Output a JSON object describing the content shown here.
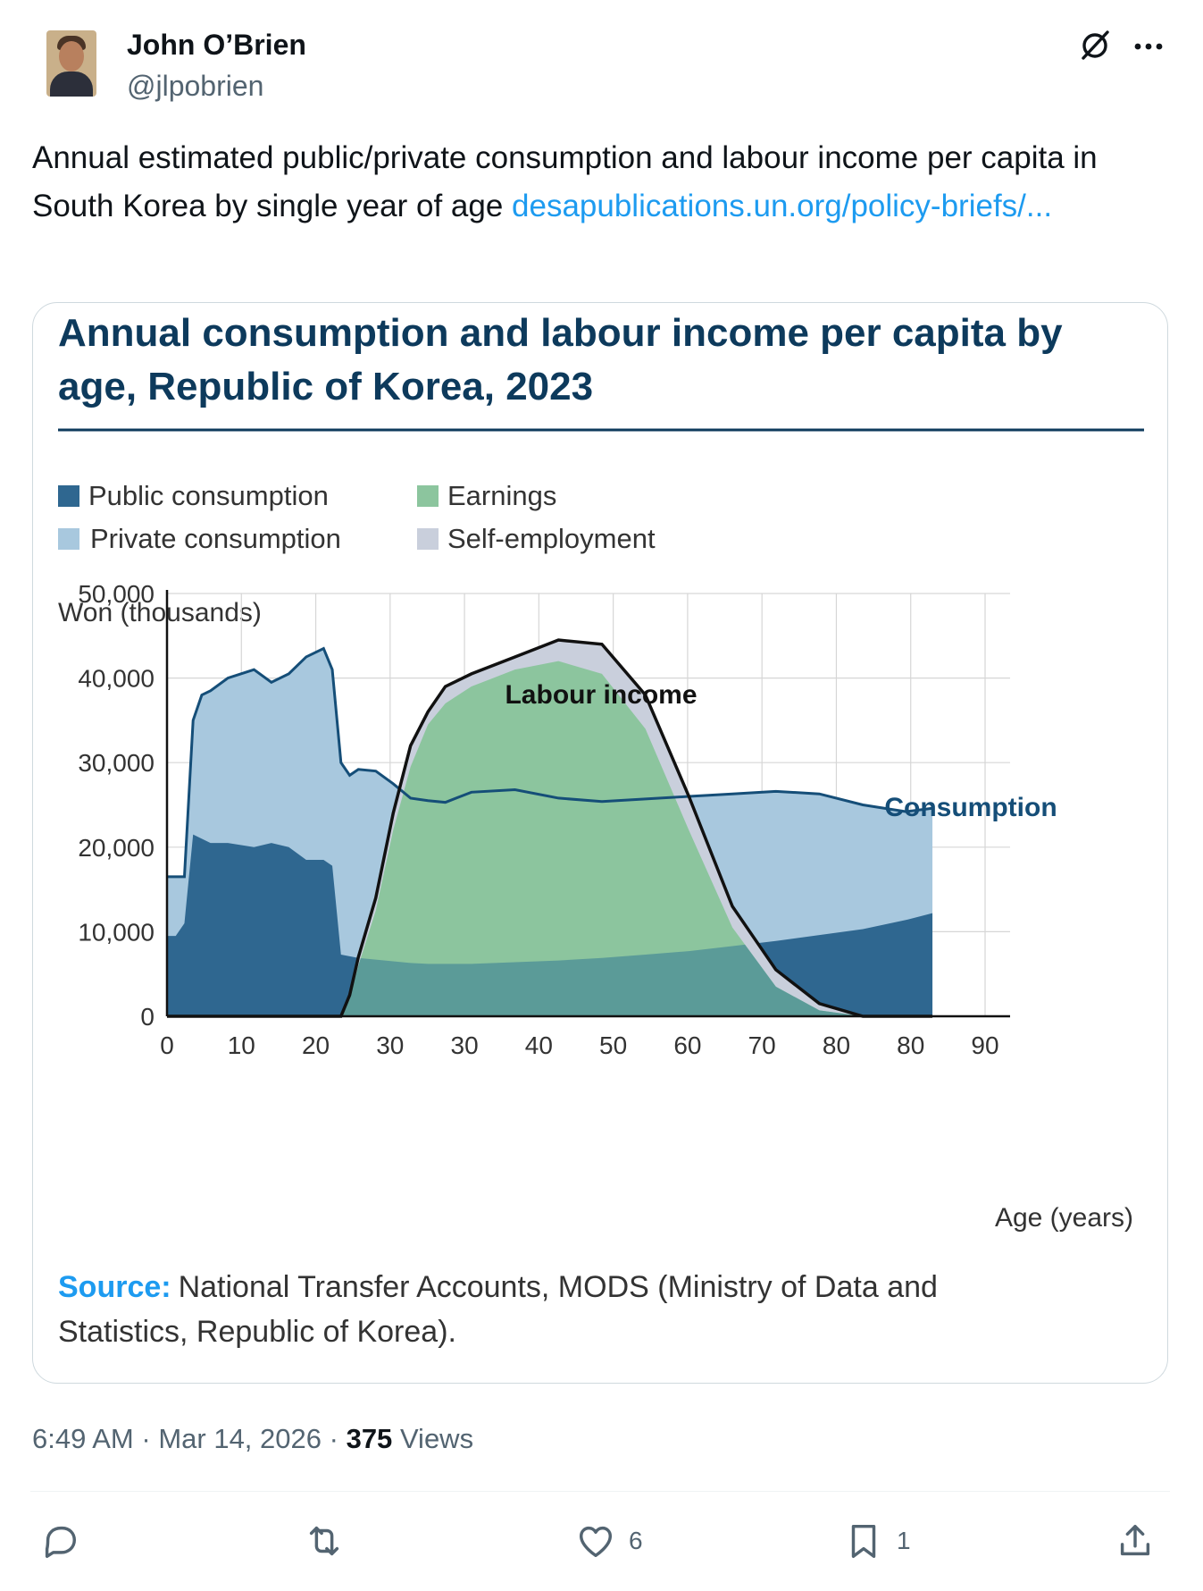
{
  "user": {
    "name": "John O’Brien",
    "handle": "@jlpobrien"
  },
  "tweet": {
    "text": "Annual estimated public/private consumption and labour income per capita in South Korea by single year of age ",
    "link": "desapublications.un.org/policy-briefs/..."
  },
  "chart_data": {
    "type": "area",
    "title": "Annual consumption and labour income per capita by age, Republic of Korea, 2023",
    "ylabel": "Won (thousands)",
    "xlabel": "Age (years)",
    "x_tick_labels": [
      "0",
      "10",
      "20",
      "30",
      "30",
      "40",
      "50",
      "60",
      "70",
      "80",
      "80",
      "90"
    ],
    "y_tick_labels": [
      "0",
      "10,000",
      "20,000",
      "30,000",
      "40,000",
      "50,000"
    ],
    "ylim": [
      0,
      50000
    ],
    "legend": [
      "Public consumption",
      "Earnings",
      "Private consumption",
      "Self-employment"
    ],
    "annotations": [
      "Labour income",
      "Consumption"
    ],
    "source_label": "Source:",
    "source_text": "National Transfer Accounts, MODS (Ministry of Data and Statistics, Republic of Korea).",
    "ages": [
      0,
      1,
      2,
      3,
      4,
      5,
      7,
      10,
      12,
      14,
      16,
      18,
      19,
      20,
      21,
      22,
      24,
      26,
      28,
      30,
      32,
      35,
      40,
      45,
      50,
      55,
      60,
      65,
      70,
      75,
      80,
      85,
      88
    ],
    "series": [
      {
        "name": "Public consumption",
        "color": "#2f6790",
        "values": [
          9500,
          9500,
          11000,
          21500,
          21000,
          20500,
          20500,
          20000,
          20500,
          20000,
          18500,
          18500,
          17800,
          7300,
          7100,
          6900,
          6700,
          6500,
          6300,
          6200,
          6200,
          6200,
          6400,
          6600,
          6900,
          7300,
          7700,
          8300,
          8900,
          9600,
          10300,
          11400,
          12200
        ]
      },
      {
        "name": "Consumption",
        "color": "#154e78",
        "values": [
          16500,
          16500,
          16500,
          35000,
          38000,
          38500,
          40000,
          41000,
          39500,
          40500,
          42500,
          43500,
          41000,
          30000,
          28500,
          29200,
          29000,
          27500,
          25800,
          25500,
          25300,
          26500,
          26800,
          25800,
          25400,
          25700,
          26000,
          26300,
          26600,
          26300,
          25000,
          24200,
          24600
        ]
      },
      {
        "name": "Earnings",
        "color": "#8cc59e",
        "values": [
          0,
          0,
          0,
          0,
          0,
          0,
          0,
          0,
          0,
          0,
          0,
          0,
          0,
          0,
          2000,
          6000,
          12500,
          22000,
          29500,
          34500,
          37000,
          39000,
          41000,
          42000,
          40500,
          34000,
          22000,
          10500,
          3500,
          700,
          0,
          0,
          0
        ]
      },
      {
        "name": "Labour income",
        "color": "#111111",
        "values": [
          0,
          0,
          0,
          0,
          0,
          0,
          0,
          0,
          0,
          0,
          0,
          0,
          0,
          0,
          2500,
          7000,
          14000,
          24000,
          32000,
          36000,
          39000,
          40500,
          42500,
          44500,
          44000,
          38000,
          26000,
          13000,
          5500,
          1500,
          0,
          0,
          0
        ]
      }
    ]
  },
  "footer": {
    "time": "6:49 AM",
    "sep1": "·",
    "date": "Mar 14, 2026",
    "sep2": "·",
    "views_count": "375",
    "views_label": "Views"
  },
  "actions": {
    "likes": "6",
    "bookmarks": "1"
  },
  "colors": {
    "title": "#0d3a5c",
    "public": "#2f6790",
    "private": "#a8c8de",
    "earnings": "#8cc59e",
    "selfemp": "#c9cfdc",
    "overlap": "#5b9b98",
    "link": "#1d9bf0"
  }
}
